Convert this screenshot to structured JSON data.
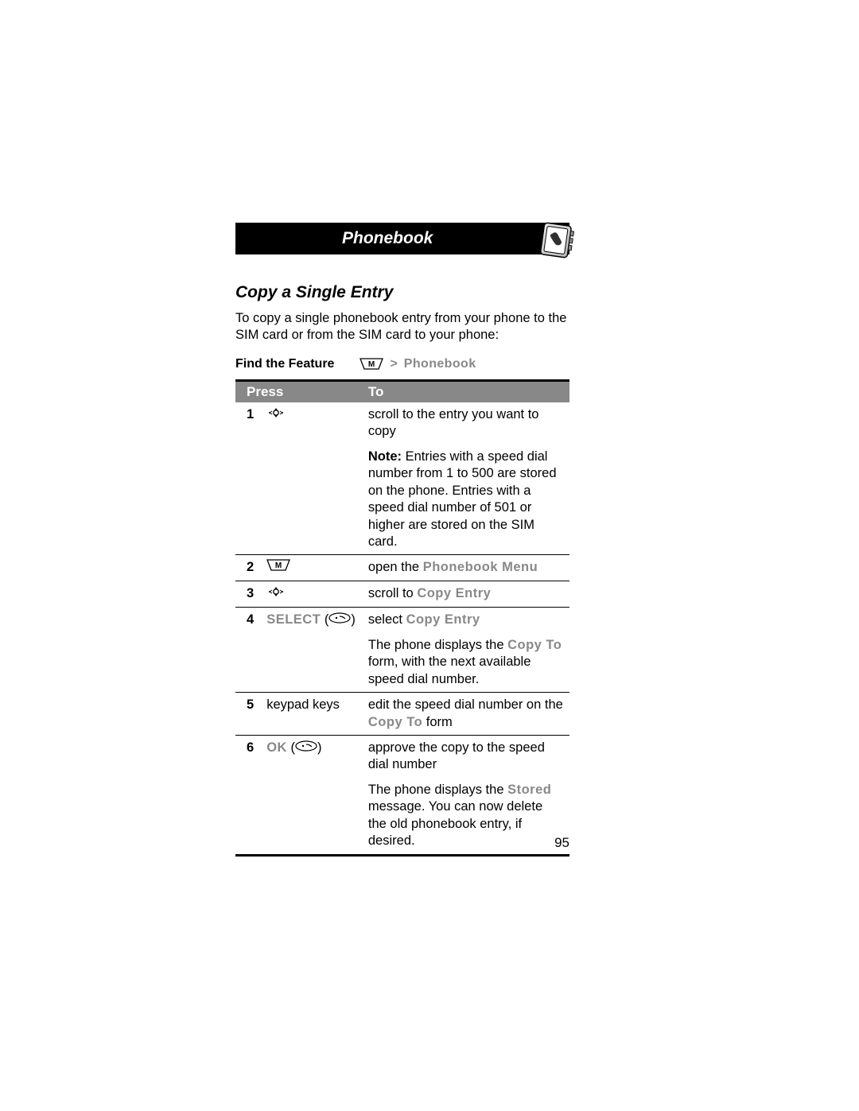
{
  "colors": {
    "page_bg": "#ffffff",
    "title_bg": "#000000",
    "title_fg": "#ffffff",
    "table_header_bg": "#888888",
    "table_header_fg": "#ffffff",
    "body_text": "#000000",
    "gray_text": "#888888",
    "rule": "#000000"
  },
  "typography": {
    "title_fontsize_pt": 16,
    "heading_fontsize_pt": 16,
    "body_fontsize_pt": 12,
    "title_italic": true,
    "heading_italic": true
  },
  "header": {
    "title": "Phonebook",
    "icon_name": "phonebook-icon"
  },
  "section": {
    "heading": "Copy a Single Entry",
    "intro": "To copy a single phonebook entry from your phone to the SIM card or from the SIM card to your phone:"
  },
  "find_feature": {
    "label": "Find the Feature",
    "key_label": "M",
    "separator": ">",
    "path": "Phonebook"
  },
  "table": {
    "columns": [
      "",
      "Press",
      "To"
    ],
    "rows": [
      {
        "num": "1",
        "press_type": "nav-icon",
        "press_text": "",
        "to_lines": [
          {
            "text": "scroll to the entry you want to copy"
          }
        ],
        "extra_lines": [
          {
            "prefix_bold": "Note: ",
            "text": "Entries with a speed dial number from 1 to 500 are stored on the phone. Entries with a speed dial number of 501 or higher are stored on the SIM card."
          }
        ]
      },
      {
        "num": "2",
        "press_type": "menu-key",
        "press_text": "",
        "to_lines": [
          {
            "text_before": "open the ",
            "code": "Phonebook Menu"
          }
        ]
      },
      {
        "num": "3",
        "press_type": "nav-icon",
        "press_text": "",
        "to_lines": [
          {
            "text_before": "scroll to ",
            "code": "Copy Entry"
          }
        ]
      },
      {
        "num": "4",
        "press_type": "softkey",
        "press_code": "SELECT",
        "to_lines": [
          {
            "text_before": "select ",
            "code": "Copy Entry"
          }
        ],
        "extra_lines": [
          {
            "text_before": "The phone displays the ",
            "code": "Copy To",
            "text_after": " form, with the next available speed dial number."
          }
        ]
      },
      {
        "num": "5",
        "press_type": "text",
        "press_text": "keypad keys",
        "to_lines": [
          {
            "text_before": "edit the speed dial number on the ",
            "code": "Copy To",
            "text_after": " form"
          }
        ]
      },
      {
        "num": "6",
        "press_type": "softkey",
        "press_code": "OK",
        "to_lines": [
          {
            "text": "approve the copy to the speed dial number"
          }
        ],
        "extra_lines": [
          {
            "text_before": "The phone displays the ",
            "code": "Stored",
            "text_after": " message. You can now delete the old phonebook entry, if desired."
          }
        ]
      }
    ]
  },
  "page_number": "95"
}
